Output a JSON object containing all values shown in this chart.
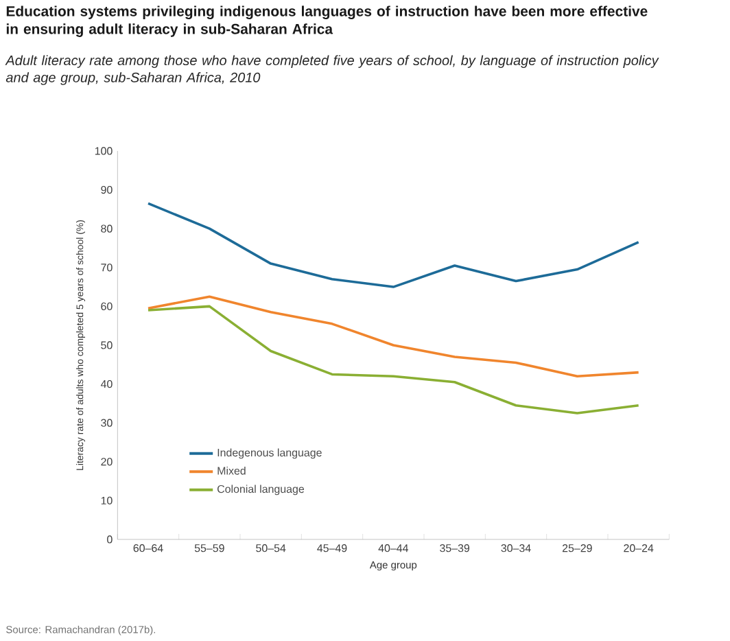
{
  "chart_data": {
    "type": "line",
    "title": "Education systems privileging indigenous languages of instruction have been more effective in ensuring adult literacy in sub-Saharan Africa",
    "subtitle": "Adult literacy rate among those who have completed five years of school, by language of instruction policy and age group, sub-Saharan Africa, 2010",
    "xlabel": "Age group",
    "ylabel": "Literacy rate of adults who completed 5 years of school (%)",
    "annotations": [
      "Source: Ramachandran (2017b)."
    ],
    "categories": [
      "60–64",
      "55–59",
      "50–54",
      "45–49",
      "40–44",
      "35–39",
      "30–34",
      "25–29",
      "20–24"
    ],
    "series": [
      {
        "name": "Indegenous language",
        "color": "#1d6b98",
        "values": [
          86.5,
          80,
          71,
          67,
          65,
          70.5,
          66.5,
          69.5,
          76.5
        ]
      },
      {
        "name": "Mixed",
        "color": "#f0852d",
        "values": [
          59.5,
          62.5,
          58.5,
          55.5,
          50,
          47,
          45.5,
          42,
          43
        ]
      },
      {
        "name": "Colonial language",
        "color": "#8aaf33",
        "values": [
          59,
          60,
          48.5,
          42.5,
          42,
          40.5,
          34.5,
          32.5,
          34.5
        ]
      }
    ],
    "ylim": [
      0,
      100
    ],
    "yticks": [
      0,
      10,
      20,
      30,
      40,
      50,
      60,
      70,
      80,
      90,
      100
    ],
    "legend": "bottom left",
    "grid": false,
    "marker": "none",
    "line_style": "solid"
  }
}
